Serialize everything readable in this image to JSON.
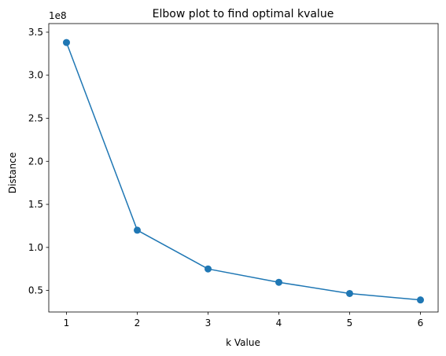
{
  "chart_data": {
    "type": "line",
    "title": "Elbow plot to find optimal kvalue",
    "xlabel": "k Value",
    "ylabel": "Distance",
    "y_offset_label": "1e8",
    "x": [
      1,
      2,
      3,
      4,
      5,
      6
    ],
    "series": [
      {
        "values": [
          338000000,
          120000000,
          75000000,
          59500000,
          46500000,
          39000000
        ],
        "marker": "circle"
      }
    ],
    "xlim": [
      0.75,
      6.25
    ],
    "ylim": [
      0.25,
      3.6
    ],
    "xticks": [
      1,
      2,
      3,
      4,
      5,
      6
    ],
    "xtick_labels": [
      "1",
      "2",
      "3",
      "4",
      "5",
      "6"
    ],
    "yticks": [
      0.5,
      1.0,
      1.5,
      2.0,
      2.5,
      3.0,
      3.5
    ],
    "ytick_labels": [
      "0.5",
      "1.0",
      "1.5",
      "2.0",
      "2.5",
      "3.0",
      "3.5"
    ],
    "grid": false,
    "colors": {
      "series": "#1f77b4"
    }
  }
}
